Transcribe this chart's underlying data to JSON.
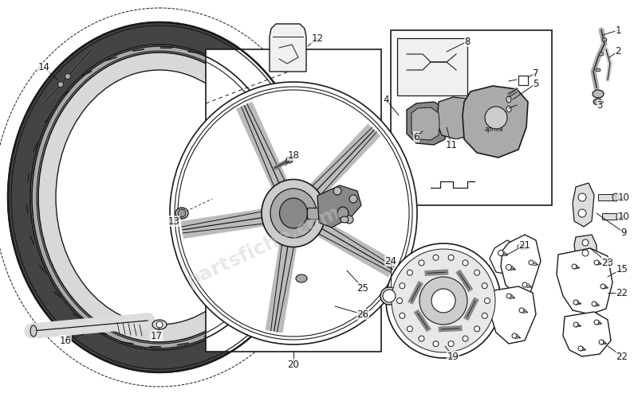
{
  "bg_color": "#ffffff",
  "lc": "#1a1a1a",
  "dark_fill": "#555555",
  "tire_dark": "#666666",
  "tire_mid": "#999999",
  "tire_light": "#cccccc",
  "rim_fill": "#dddddd",
  "part_fill": "#e8e8e8",
  "watermark": "partsfiche.com",
  "figsize": [
    8.0,
    4.94
  ],
  "dpi": 100
}
